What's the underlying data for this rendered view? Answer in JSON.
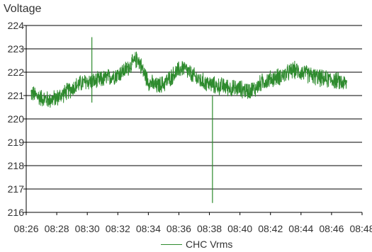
{
  "chart_data": {
    "type": "line",
    "ylabel": "Voltage",
    "xlabel": "",
    "title": "",
    "x_start": "08:26",
    "x_end": "08:48",
    "xlim": [
      "08:26",
      "08:48"
    ],
    "ylim": [
      216,
      224
    ],
    "yticks": [
      "216",
      "217",
      "218",
      "219",
      "220",
      "221",
      "222",
      "223",
      "224"
    ],
    "xticks": [
      "08:26",
      "08:28",
      "08:30",
      "08:32",
      "08:34",
      "08:36",
      "08:38",
      "08:40",
      "08:42",
      "08:44",
      "08:46",
      "08:48"
    ],
    "grid": "horizontal",
    "legend_position": "bottom",
    "series": [
      {
        "name": "CHC Vrms",
        "color": "#2e8b2e",
        "data_start": "08:26.3",
        "data_end": "08:47.0",
        "trend": [
          [
            "08:26.3",
            221.1
          ],
          [
            "08:27.0",
            220.9
          ],
          [
            "08:27.5",
            220.8
          ],
          [
            "08:28.0",
            220.9
          ],
          [
            "08:28.5",
            221.1
          ],
          [
            "08:29.0",
            221.3
          ],
          [
            "08:29.5",
            221.5
          ],
          [
            "08:30.0",
            221.6
          ],
          [
            "08:30.5",
            221.6
          ],
          [
            "08:31.0",
            221.7
          ],
          [
            "08:31.5",
            221.8
          ],
          [
            "08:32.0",
            221.9
          ],
          [
            "08:32.5",
            222.1
          ],
          [
            "08:33.0",
            222.4
          ],
          [
            "08:33.3",
            222.6
          ],
          [
            "08:33.7",
            222.0
          ],
          [
            "08:34.0",
            221.6
          ],
          [
            "08:34.5",
            221.4
          ],
          [
            "08:35.0",
            221.5
          ],
          [
            "08:35.5",
            221.8
          ],
          [
            "08:36.0",
            222.1
          ],
          [
            "08:36.3",
            222.2
          ],
          [
            "08:36.8",
            221.9
          ],
          [
            "08:37.5",
            221.6
          ],
          [
            "08:38.0",
            221.5
          ],
          [
            "08:38.5",
            221.4
          ],
          [
            "08:39.0",
            221.4
          ],
          [
            "08:39.5",
            221.3
          ],
          [
            "08:40.0",
            221.3
          ],
          [
            "08:40.5",
            221.2
          ],
          [
            "08:41.0",
            221.3
          ],
          [
            "08:41.5",
            221.6
          ],
          [
            "08:42.0",
            221.7
          ],
          [
            "08:42.5",
            221.8
          ],
          [
            "08:43.0",
            221.9
          ],
          [
            "08:43.5",
            222.1
          ],
          [
            "08:44.0",
            222.0
          ],
          [
            "08:44.5",
            221.9
          ],
          [
            "08:45.0",
            221.8
          ],
          [
            "08:45.5",
            221.7
          ],
          [
            "08:46.0",
            221.7
          ],
          [
            "08:46.5",
            221.6
          ],
          [
            "08:47.0",
            221.5
          ]
        ],
        "spikes": [
          {
            "x": "08:30.3",
            "min": 220.7,
            "max": 223.5
          },
          {
            "x": "08:38.2",
            "min": 216.4,
            "max": 221.0
          }
        ]
      }
    ]
  }
}
